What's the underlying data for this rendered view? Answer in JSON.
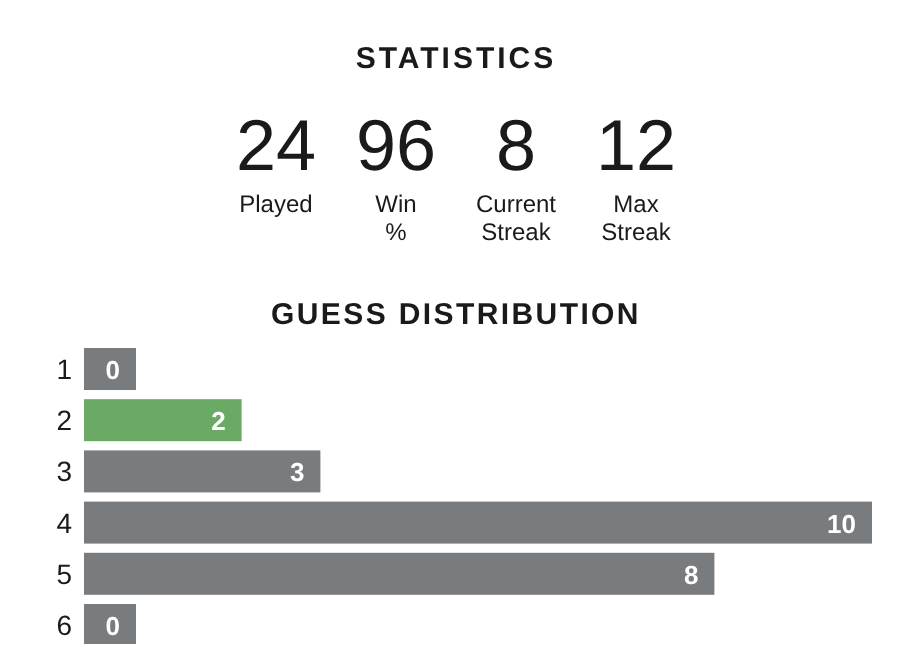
{
  "chart_data": [
    {
      "type": "other",
      "title": "STATISTICS",
      "categories": [
        "Played",
        "Win %",
        "Current Streak",
        "Max Streak"
      ],
      "values": [
        24,
        96,
        8,
        12
      ],
      "data_labels": true
    },
    {
      "type": "bar",
      "title": "GUESS DISTRIBUTION",
      "orientation": "horizontal",
      "categories": [
        "1",
        "2",
        "3",
        "4",
        "5",
        "6"
      ],
      "values": [
        0,
        2,
        3,
        10,
        8,
        0
      ],
      "colors": [
        "#787c7e",
        "#6aaa64",
        "#787c7e",
        "#787c7e",
        "#787c7e",
        "#787c7e"
      ],
      "data_labels": true
    }
  ]
}
